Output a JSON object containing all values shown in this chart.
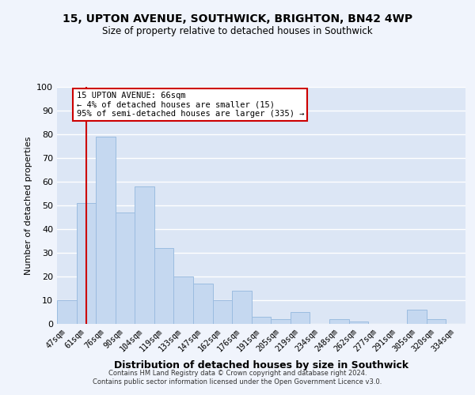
{
  "title1": "15, UPTON AVENUE, SOUTHWICK, BRIGHTON, BN42 4WP",
  "title2": "Size of property relative to detached houses in Southwick",
  "xlabel": "Distribution of detached houses by size in Southwick",
  "ylabel": "Number of detached properties",
  "bar_labels": [
    "47sqm",
    "61sqm",
    "76sqm",
    "90sqm",
    "104sqm",
    "119sqm",
    "133sqm",
    "147sqm",
    "162sqm",
    "176sqm",
    "191sqm",
    "205sqm",
    "219sqm",
    "234sqm",
    "248sqm",
    "262sqm",
    "277sqm",
    "291sqm",
    "305sqm",
    "320sqm",
    "334sqm"
  ],
  "bar_values": [
    10,
    51,
    79,
    47,
    58,
    32,
    20,
    17,
    10,
    14,
    3,
    2,
    5,
    0,
    2,
    1,
    0,
    0,
    6,
    2,
    0
  ],
  "bar_color": "#c5d8f0",
  "bar_edge_color": "#9bbce0",
  "vline_x": 1,
  "vline_color": "#cc0000",
  "ylim": [
    0,
    100
  ],
  "yticks": [
    0,
    10,
    20,
    30,
    40,
    50,
    60,
    70,
    80,
    90,
    100
  ],
  "bg_color": "#dce6f5",
  "grid_color": "#ffffff",
  "annotation_title": "15 UPTON AVENUE: 66sqm",
  "annotation_line1": "← 4% of detached houses are smaller (15)",
  "annotation_line2": "95% of semi-detached houses are larger (335) →",
  "annotation_box_color": "#ffffff",
  "annotation_box_edge": "#cc0000",
  "fig_bg": "#f0f4fc",
  "footer1": "Contains HM Land Registry data © Crown copyright and database right 2024.",
  "footer2": "Contains public sector information licensed under the Open Government Licence v3.0."
}
